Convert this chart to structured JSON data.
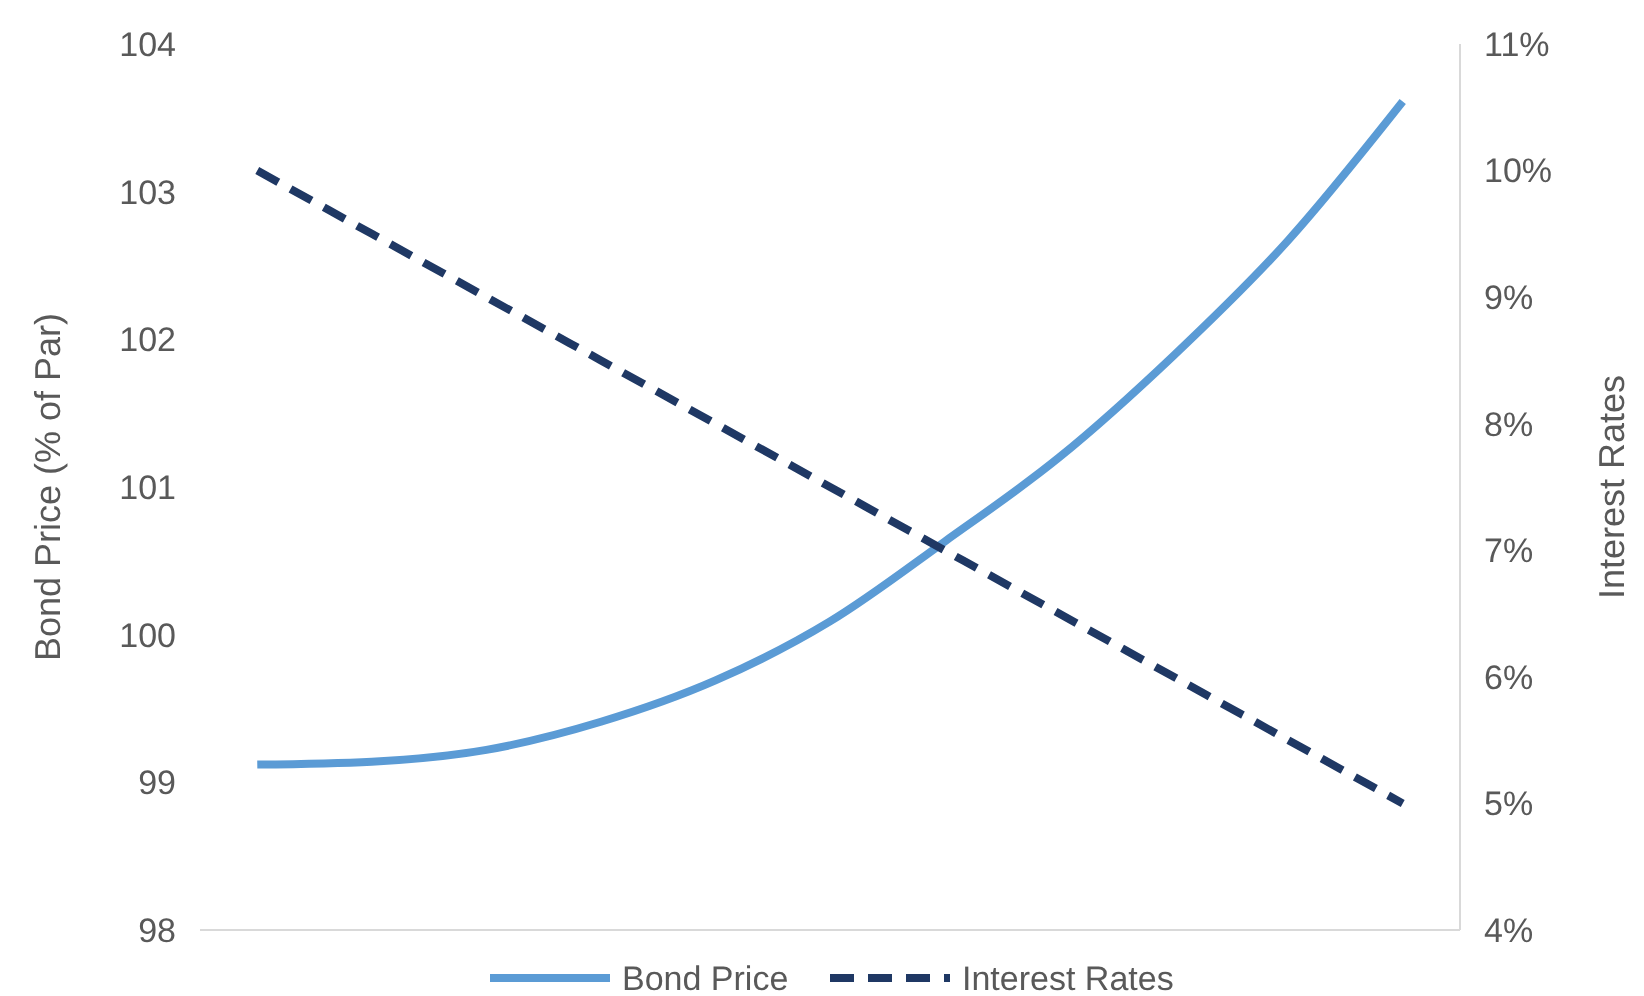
{
  "chart_data": {
    "type": "line",
    "ylabel": "Bond Price (% of Par)",
    "y2label": "Interest Rates",
    "categories": [
      null,
      null,
      null,
      null,
      null,
      null,
      null,
      null,
      null,
      null,
      null
    ],
    "series": [
      {
        "name": "Bond Price",
        "color": "#5b9bd5",
        "values": [
          99.12,
          99.14,
          99.22,
          99.41,
          99.69,
          100.09,
          100.63,
          101.2,
          101.89,
          102.67,
          103.61
        ]
      },
      {
        "name": "Interest Rates",
        "color": "#1f3864",
        "axis": "y2",
        "line_style": "dashed",
        "values": [
          10,
          9.5,
          9,
          8.5,
          8,
          7.5,
          7,
          6.5,
          6,
          5.5,
          5
        ]
      }
    ],
    "ylim": [
      98,
      104
    ],
    "yticks": [
      98,
      99,
      100,
      101,
      102,
      103,
      104
    ],
    "y2lim": [
      4,
      11
    ],
    "y2ticks": [
      {
        "value": 4,
        "label": "4%"
      },
      {
        "value": 5,
        "label": "5%"
      },
      {
        "value": 6,
        "label": "6%"
      },
      {
        "value": 7,
        "label": "7%"
      },
      {
        "value": 8,
        "label": "8%"
      },
      {
        "value": 9,
        "label": "9%"
      },
      {
        "value": 10,
        "label": "10%"
      },
      {
        "value": 11,
        "label": "11%"
      }
    ],
    "grid": false,
    "legend": "bottom",
    "marker": "none"
  }
}
